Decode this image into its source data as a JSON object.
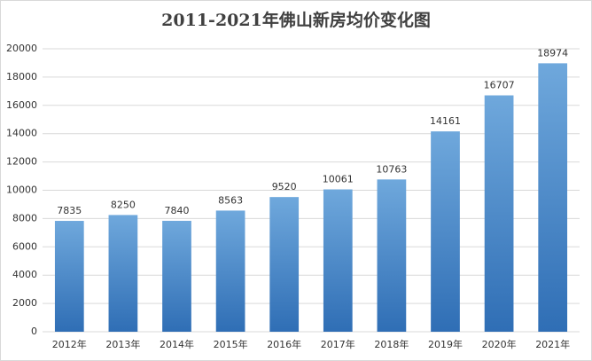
{
  "chart_data": {
    "type": "bar",
    "title": "2011-2021年佛山新房均价变化图",
    "categories": [
      "2012年",
      "2013年",
      "2014年",
      "2015年",
      "2016年",
      "2017年",
      "2018年",
      "2019年",
      "2020年",
      "2021年"
    ],
    "values": [
      7835,
      8250,
      7840,
      8563,
      9520,
      10061,
      10763,
      14161,
      16707,
      18974
    ],
    "color": "#5b9bd5",
    "ylim": [
      0,
      20000
    ],
    "yticks": [
      0,
      2000,
      4000,
      6000,
      8000,
      10000,
      12000,
      14000,
      16000,
      18000,
      20000
    ],
    "grid": true
  }
}
